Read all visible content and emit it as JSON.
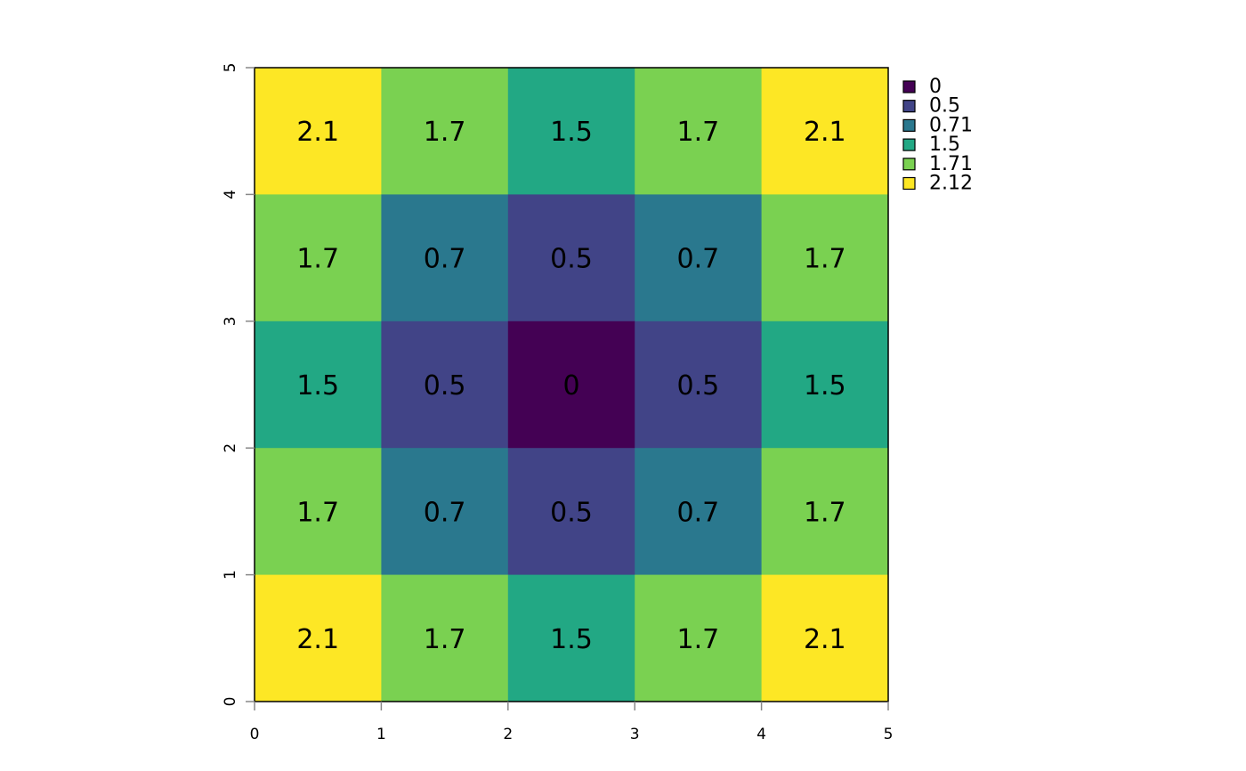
{
  "chart_data": {
    "type": "heatmap",
    "title": "",
    "xlabel": "",
    "ylabel": "",
    "xlim": [
      0,
      5
    ],
    "ylim": [
      0,
      5
    ],
    "x_ticks": [
      "0",
      "1",
      "2",
      "3",
      "4",
      "5"
    ],
    "y_ticks": [
      "0",
      "1",
      "2",
      "3",
      "4",
      "5"
    ],
    "grid": false,
    "legend_position": "top-right",
    "legend": [
      {
        "label": "0",
        "color": "#440154"
      },
      {
        "label": "0.5",
        "color": "#414487"
      },
      {
        "label": "0.71",
        "color": "#2A788E"
      },
      {
        "label": "1.5",
        "color": "#22A884"
      },
      {
        "label": "1.71",
        "color": "#7AD151"
      },
      {
        "label": "2.12",
        "color": "#FDE725"
      }
    ],
    "rows_top_to_bottom": [
      {
        "values": [
          2.12,
          1.71,
          1.5,
          1.71,
          2.12
        ],
        "labels": [
          "2.1",
          "1.7",
          "1.5",
          "1.7",
          "2.1"
        ]
      },
      {
        "values": [
          1.71,
          0.71,
          0.5,
          0.71,
          1.71
        ],
        "labels": [
          "1.7",
          "0.7",
          "0.5",
          "0.7",
          "1.7"
        ]
      },
      {
        "values": [
          1.5,
          0.5,
          0,
          0.5,
          1.5
        ],
        "labels": [
          "1.5",
          "0.5",
          "0",
          "0.5",
          "1.5"
        ]
      },
      {
        "values": [
          1.71,
          0.71,
          0.5,
          0.71,
          1.71
        ],
        "labels": [
          "1.7",
          "0.7",
          "0.5",
          "0.7",
          "1.7"
        ]
      },
      {
        "values": [
          2.12,
          1.71,
          1.5,
          1.71,
          2.12
        ],
        "labels": [
          "2.1",
          "1.7",
          "1.5",
          "1.7",
          "2.1"
        ]
      }
    ]
  }
}
